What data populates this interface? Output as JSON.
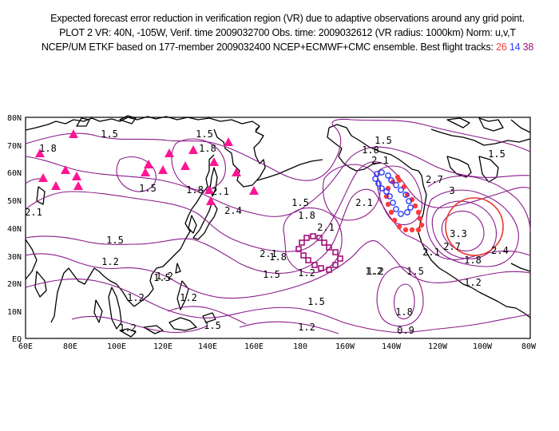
{
  "header": {
    "line1": "Expected forecast error reduction in verification region (VR) due to adaptive observations around any grid point.",
    "line2": "PLOT 2 VR: 40N, -105W, Verif. time 2009032700 Obs. time: 2009032612 (VR radius: 1000km) Norm: u,v,T",
    "line3_prefix": "NCEP/UM ETKF based on 177-member 2009032400 NCEP+ECMWF+CMC ensemble. Best flight tracks: ",
    "track_a": "26",
    "track_b": "14",
    "track_c": "38"
  },
  "colors": {
    "contour": "#8a1a8a",
    "coast": "#000000",
    "triangle": "#ff1493",
    "track_26": "#ff3b3b",
    "track_14": "#2a3cff",
    "track_38": "#a0107a",
    "vr_circle": "#e8382a"
  },
  "axes": {
    "lon_labels": [
      "60E",
      "80E",
      "100E",
      "120E",
      "140E",
      "160E",
      "180",
      "160W",
      "140W",
      "120W",
      "100W",
      "80W"
    ],
    "lat_labels": [
      "EQ",
      "10N",
      "20N",
      "30N",
      "40N",
      "50N",
      "60N",
      "70N",
      "80N"
    ]
  },
  "contour_labels": [
    "1.5",
    "1.8",
    "2.1",
    "1.5",
    "1.5",
    "1.2",
    "1.5",
    "1.8",
    "1.5",
    "2.1",
    "2.4",
    "1.5",
    "1.8",
    "2.1",
    "1.8",
    "1.5",
    "2.1",
    "2.1",
    "1.8",
    "2.1",
    "2.7",
    "3",
    "3.3",
    "2.7",
    "2.1",
    "2.4",
    "1.8",
    "1.5",
    "1.2",
    "1.2",
    "1.5",
    "1.2",
    "1.2",
    "1.5",
    "1.2",
    "1.2",
    "1.8",
    "0.9",
    "1.5",
    "1.2",
    "1.2",
    "1.8",
    "1.5",
    "1.2"
  ],
  "verification_region": {
    "lat": 40,
    "lon": -105,
    "radius_km": 1000
  }
}
